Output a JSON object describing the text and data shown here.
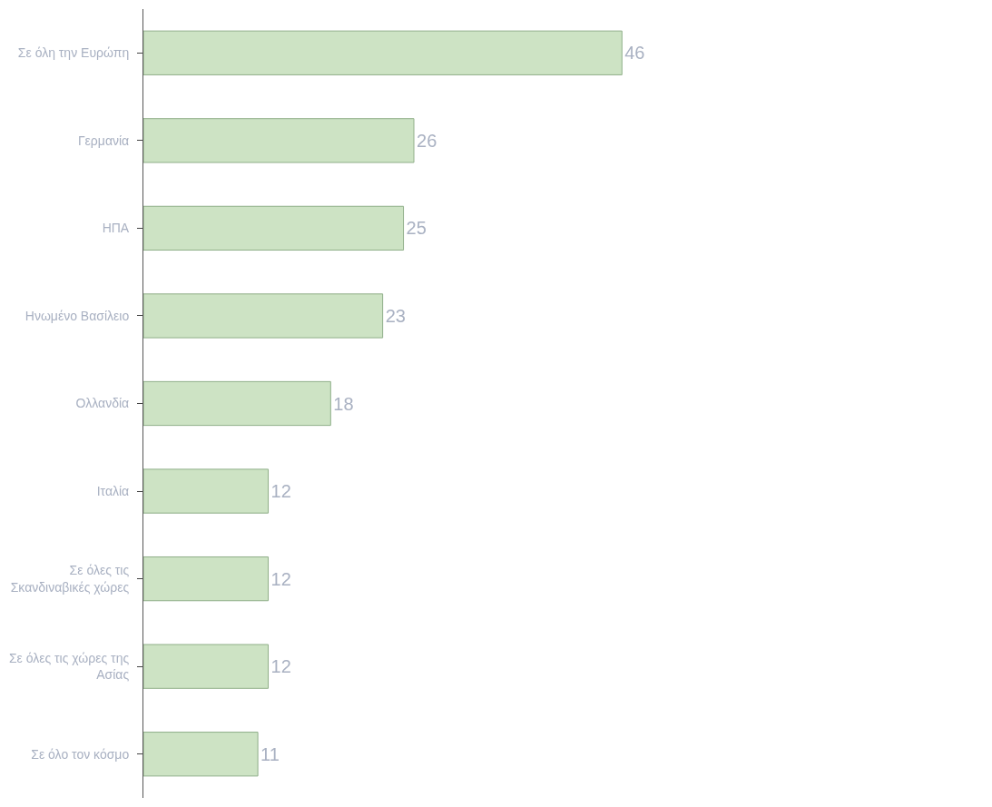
{
  "chart_data": {
    "type": "bar",
    "orientation": "horizontal",
    "data_labels": true,
    "categories": [
      "Σε όλη την Ευρώπη",
      "Γερμανία",
      "ΗΠΑ",
      "Ηνωμένο Βασίλειο",
      "Ολλανδία",
      "Ιταλία",
      "Σε όλες τις Σκανδιναβικές χώρες",
      "Σε όλες τις χώρες της Ασίας",
      "Σε όλο τον κόσμο"
    ],
    "values": [
      46,
      26,
      25,
      23,
      18,
      12,
      12,
      12,
      11
    ],
    "color": "#cde3c4"
  }
}
